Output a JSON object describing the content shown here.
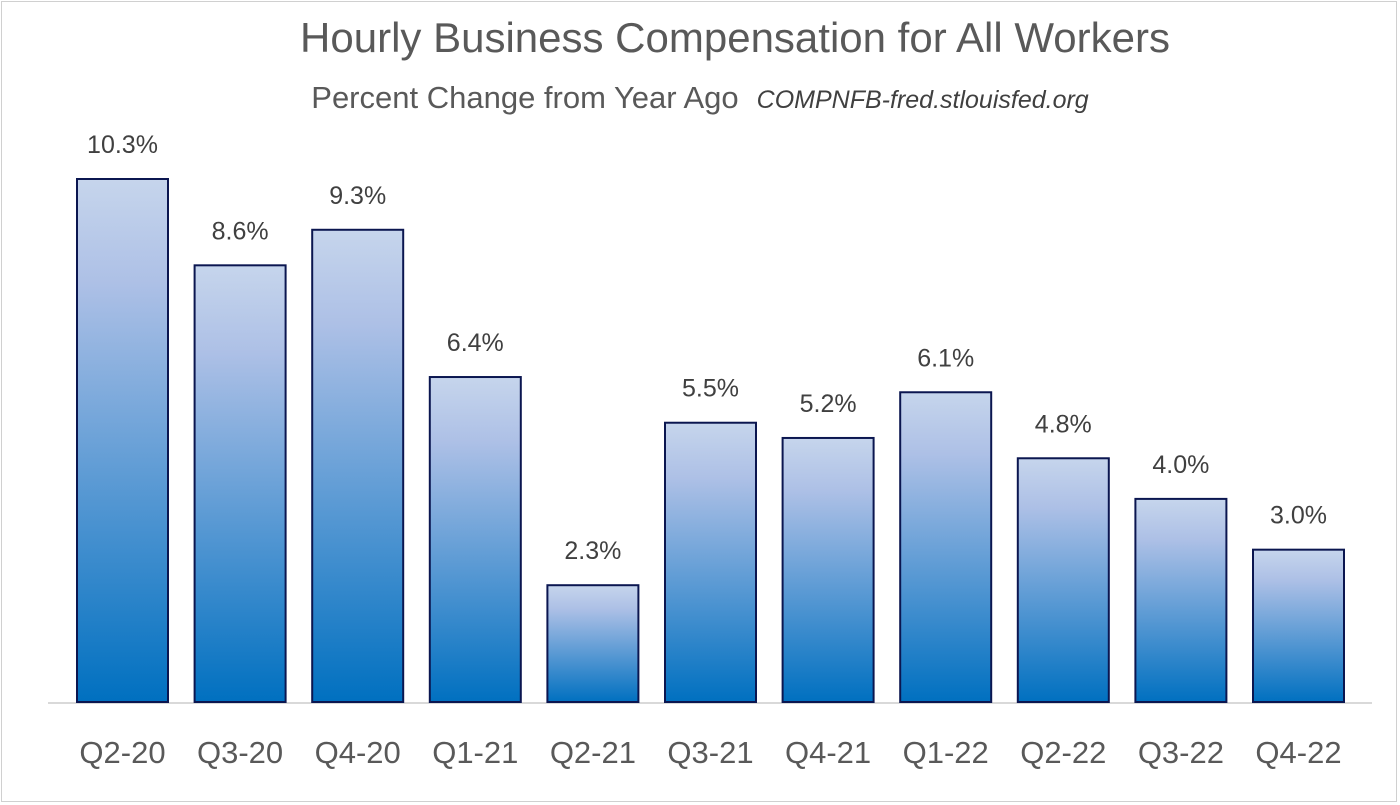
{
  "chart_data": {
    "type": "bar",
    "title": "Hourly Business Compensation for All Workers",
    "subtitle": "Percent Change from Year Ago",
    "source": "COMPNFB-fred.stlouisfed.org",
    "categories": [
      "Q2-20",
      "Q3-20",
      "Q4-20",
      "Q1-21",
      "Q2-21",
      "Q3-21",
      "Q4-21",
      "Q1-22",
      "Q2-22",
      "Q3-22",
      "Q4-22"
    ],
    "values": [
      10.3,
      8.6,
      9.3,
      6.4,
      2.3,
      5.5,
      5.2,
      6.1,
      4.8,
      4.0,
      3.0
    ],
    "data_labels": [
      "10.3%",
      "8.6%",
      "9.3%",
      "6.4%",
      "2.3%",
      "5.5%",
      "5.2%",
      "6.1%",
      "4.8%",
      "4.0%",
      "3.0%"
    ],
    "ylim": [
      0,
      10.3
    ],
    "grid": false,
    "legend": "none",
    "colors": {
      "bar_top": "#c6d5ec",
      "bar_mid": "#adc0e6",
      "bar_bottom": "#0070c0",
      "bar_border": "#0b1650",
      "text": "#595959"
    }
  }
}
